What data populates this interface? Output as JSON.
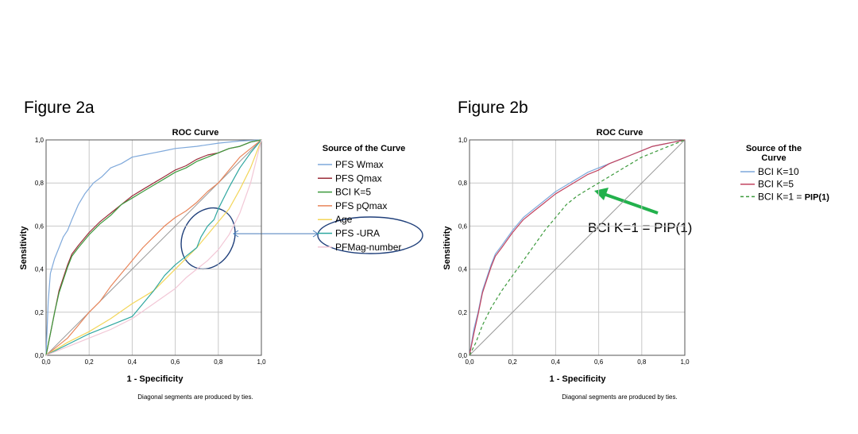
{
  "figures": {
    "a_label": "Figure 2a",
    "b_label": "Figure 2b"
  },
  "chart_data": [
    {
      "type": "line",
      "title": "ROC Curve",
      "xlabel": "1 - Specificity",
      "ylabel": "Sensitivity",
      "xlim": [
        0,
        1
      ],
      "ylim": [
        0,
        1
      ],
      "xticks": [
        "0,0",
        "0,2",
        "0,4",
        "0,6",
        "0,8",
        "1,0"
      ],
      "yticks": [
        "0,0",
        "0,2",
        "0,4",
        "0,6",
        "0,8",
        "1,0"
      ],
      "grid": true,
      "legend_title": "Source of the Curve",
      "legend_position": "right",
      "note": "Diagonal segments are produced by ties.",
      "series": [
        {
          "name": "PFS Wmax",
          "color": "#7fa9db",
          "dash": false,
          "x": [
            0,
            0.01,
            0.02,
            0.04,
            0.06,
            0.08,
            0.1,
            0.12,
            0.15,
            0.18,
            0.22,
            0.26,
            0.3,
            0.35,
            0.4,
            0.45,
            0.5,
            0.55,
            0.6,
            0.7,
            0.8,
            0.9,
            1.0
          ],
          "y": [
            0,
            0.25,
            0.38,
            0.45,
            0.5,
            0.55,
            0.58,
            0.63,
            0.7,
            0.75,
            0.8,
            0.83,
            0.87,
            0.89,
            0.92,
            0.93,
            0.94,
            0.95,
            0.96,
            0.97,
            0.985,
            0.995,
            1.0
          ]
        },
        {
          "name": "PFS Qmax",
          "color": "#9b2d3a",
          "dash": false,
          "x": [
            0,
            0.02,
            0.04,
            0.06,
            0.08,
            0.1,
            0.12,
            0.15,
            0.2,
            0.25,
            0.3,
            0.35,
            0.4,
            0.45,
            0.5,
            0.55,
            0.6,
            0.65,
            0.7,
            0.75,
            0.8,
            0.85,
            0.9,
            0.95,
            1.0
          ],
          "y": [
            0,
            0.1,
            0.2,
            0.3,
            0.36,
            0.42,
            0.47,
            0.51,
            0.57,
            0.62,
            0.66,
            0.7,
            0.74,
            0.77,
            0.8,
            0.83,
            0.86,
            0.88,
            0.91,
            0.93,
            0.94,
            0.96,
            0.97,
            0.99,
            1.0
          ]
        },
        {
          "name": "BCI K=5",
          "color": "#3d9a3d",
          "dash": false,
          "x": [
            0,
            0.02,
            0.04,
            0.06,
            0.08,
            0.1,
            0.12,
            0.15,
            0.2,
            0.25,
            0.3,
            0.35,
            0.4,
            0.45,
            0.5,
            0.55,
            0.6,
            0.65,
            0.7,
            0.75,
            0.8,
            0.85,
            0.9,
            0.95,
            1.0
          ],
          "y": [
            0,
            0.1,
            0.2,
            0.29,
            0.35,
            0.41,
            0.46,
            0.5,
            0.56,
            0.61,
            0.65,
            0.7,
            0.73,
            0.76,
            0.79,
            0.82,
            0.85,
            0.87,
            0.9,
            0.92,
            0.94,
            0.96,
            0.97,
            0.99,
            1.0
          ]
        },
        {
          "name": "PFS pQmax",
          "color": "#e8855a",
          "dash": false,
          "x": [
            0,
            0.05,
            0.1,
            0.15,
            0.2,
            0.25,
            0.3,
            0.35,
            0.4,
            0.45,
            0.5,
            0.55,
            0.6,
            0.65,
            0.7,
            0.75,
            0.8,
            0.85,
            0.9,
            0.95,
            1.0
          ],
          "y": [
            0,
            0.04,
            0.08,
            0.14,
            0.2,
            0.25,
            0.32,
            0.38,
            0.44,
            0.5,
            0.55,
            0.6,
            0.64,
            0.67,
            0.71,
            0.76,
            0.8,
            0.86,
            0.92,
            0.96,
            1.0
          ]
        },
        {
          "name": "Age",
          "color": "#f3d65a",
          "dash": false,
          "x": [
            0,
            0.1,
            0.2,
            0.3,
            0.4,
            0.5,
            0.55,
            0.6,
            0.65,
            0.7,
            0.75,
            0.8,
            0.85,
            0.9,
            0.95,
            1.0
          ],
          "y": [
            0,
            0.06,
            0.11,
            0.17,
            0.24,
            0.3,
            0.35,
            0.4,
            0.45,
            0.5,
            0.56,
            0.62,
            0.68,
            0.77,
            0.87,
            1.0
          ]
        },
        {
          "name": "PFS -URA",
          "color": "#2fa7a0",
          "dash": false,
          "x": [
            0,
            0.1,
            0.2,
            0.3,
            0.4,
            0.45,
            0.5,
            0.55,
            0.6,
            0.65,
            0.7,
            0.72,
            0.75,
            0.78,
            0.8,
            0.85,
            0.9,
            0.95,
            1.0
          ],
          "y": [
            0,
            0.05,
            0.1,
            0.14,
            0.18,
            0.24,
            0.3,
            0.37,
            0.42,
            0.46,
            0.5,
            0.55,
            0.6,
            0.63,
            0.68,
            0.78,
            0.87,
            0.94,
            1.0
          ]
        },
        {
          "name": "PFMag-number",
          "color": "#f2c7d6",
          "dash": false,
          "x": [
            0,
            0.1,
            0.2,
            0.3,
            0.4,
            0.5,
            0.6,
            0.65,
            0.7,
            0.75,
            0.8,
            0.85,
            0.9,
            0.95,
            1.0
          ],
          "y": [
            0,
            0.04,
            0.08,
            0.12,
            0.17,
            0.24,
            0.31,
            0.36,
            0.4,
            0.44,
            0.49,
            0.56,
            0.66,
            0.8,
            1.0
          ]
        }
      ]
    },
    {
      "type": "line",
      "title": "ROC Curve",
      "xlabel": "1 - Specificity",
      "ylabel": "Sensitivity",
      "xlim": [
        0,
        1
      ],
      "ylim": [
        0,
        1
      ],
      "xticks": [
        "0,0",
        "0,2",
        "0,4",
        "0,6",
        "0,8",
        "1,0"
      ],
      "yticks": [
        "0,0",
        "0,2",
        "0,4",
        "0,6",
        "0,8",
        "1,0"
      ],
      "grid": true,
      "legend_title_line1": "Source of the",
      "legend_title_line2": "Curve",
      "legend_position": "right",
      "note": "Diagonal segments are produced by ties.",
      "annotation": "BCI K=1 = PIP(1)",
      "series": [
        {
          "name": "BCI K=10",
          "color": "#7fa9db",
          "dash": false,
          "x": [
            0,
            0.02,
            0.04,
            0.06,
            0.08,
            0.1,
            0.12,
            0.15,
            0.2,
            0.25,
            0.3,
            0.35,
            0.4,
            0.45,
            0.5,
            0.55,
            0.6,
            0.65,
            0.7,
            0.75,
            0.8,
            0.85,
            0.9,
            0.95,
            1.0
          ],
          "y": [
            0,
            0.12,
            0.2,
            0.3,
            0.36,
            0.42,
            0.47,
            0.51,
            0.58,
            0.64,
            0.68,
            0.72,
            0.76,
            0.79,
            0.82,
            0.85,
            0.87,
            0.89,
            0.91,
            0.93,
            0.95,
            0.97,
            0.98,
            0.99,
            1.0
          ]
        },
        {
          "name": "BCI K=5",
          "color": "#c2435f",
          "dash": false,
          "x": [
            0,
            0.02,
            0.04,
            0.06,
            0.08,
            0.1,
            0.12,
            0.15,
            0.2,
            0.25,
            0.3,
            0.35,
            0.4,
            0.45,
            0.5,
            0.55,
            0.6,
            0.65,
            0.7,
            0.75,
            0.8,
            0.85,
            0.9,
            0.95,
            1.0
          ],
          "y": [
            0,
            0.1,
            0.19,
            0.29,
            0.35,
            0.41,
            0.46,
            0.5,
            0.57,
            0.63,
            0.67,
            0.71,
            0.75,
            0.78,
            0.81,
            0.84,
            0.86,
            0.89,
            0.91,
            0.93,
            0.95,
            0.97,
            0.98,
            0.99,
            1.0
          ]
        },
        {
          "name": "BCI K=1 = PIP(1)",
          "name_prefix": "BCI K=1 = ",
          "name_bold": "PIP(1)",
          "color": "#3d9a3d",
          "dash": true,
          "x": [
            0,
            0.03,
            0.06,
            0.1,
            0.15,
            0.2,
            0.25,
            0.3,
            0.35,
            0.4,
            0.45,
            0.5,
            0.55,
            0.6,
            0.65,
            0.7,
            0.75,
            0.8,
            0.85,
            0.9,
            0.95,
            1.0
          ],
          "y": [
            0,
            0.06,
            0.14,
            0.22,
            0.3,
            0.37,
            0.44,
            0.51,
            0.58,
            0.64,
            0.7,
            0.74,
            0.77,
            0.8,
            0.83,
            0.86,
            0.89,
            0.92,
            0.94,
            0.96,
            0.98,
            1.0
          ]
        }
      ]
    }
  ]
}
